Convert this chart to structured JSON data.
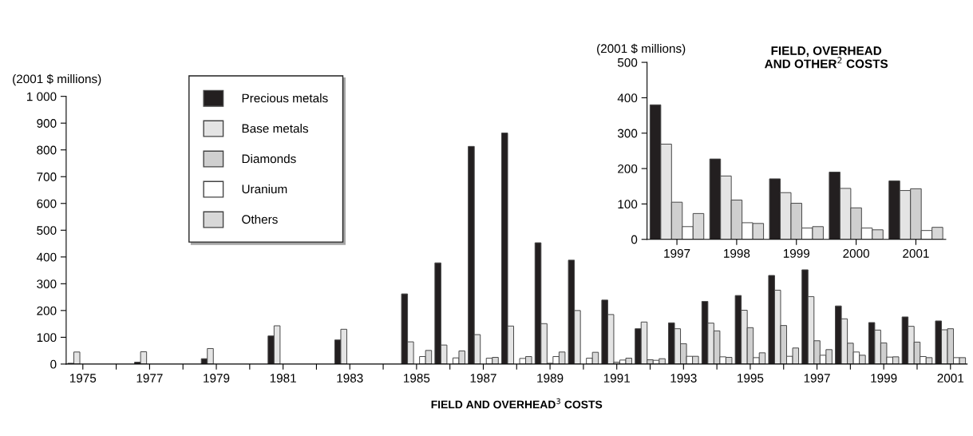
{
  "chart_data": [
    {
      "type": "bar",
      "xlabel": "FIELD AND OVERHEAD$^{3}$ COSTS",
      "ylabel": "(2001 $ millions)",
      "categories": [
        "1975",
        null,
        "1977",
        null,
        "1979",
        null,
        "1981",
        null,
        "1983",
        null,
        "1985",
        null,
        "1987",
        null,
        "1989",
        null,
        "1991",
        null,
        "1993",
        null,
        "1995",
        null,
        "1997",
        null,
        "1999",
        null,
        "2001"
      ],
      "series": [
        {
          "name": "Precious metals",
          "color": "#231f20",
          "values": [
            3,
            0,
            7,
            0,
            20,
            0,
            105,
            0,
            90,
            0,
            262,
            378,
            813,
            863,
            453,
            388,
            239,
            132,
            154,
            234,
            256,
            331,
            352,
            217,
            155,
            176,
            161
          ]
        },
        {
          "name": "Base metals",
          "color": "#e4e4e4",
          "values": [
            45,
            0,
            46,
            0,
            58,
            0,
            143,
            0,
            130,
            0,
            83,
            71,
            110,
            142,
            151,
            200,
            185,
            157,
            132,
            153,
            201,
            276,
            252,
            169,
            127,
            141,
            128
          ]
        },
        {
          "name": "Diamonds",
          "color": "#cfcfcf",
          "values": [
            0,
            0,
            0,
            0,
            0,
            0,
            0,
            0,
            0,
            0,
            0,
            0,
            0,
            null,
            3,
            null,
            7,
            16,
            76,
            124,
            136,
            144,
            87,
            78,
            79,
            82,
            132
          ]
        },
        {
          "name": "Uranium",
          "color": "#ffffff",
          "values": [
            0,
            0,
            0,
            0,
            0,
            0,
            0,
            0,
            0,
            0,
            28,
            23,
            22,
            21,
            28,
            22,
            15,
            14,
            29,
            27,
            24,
            29,
            33,
            45,
            26,
            28,
            24
          ]
        },
        {
          "name": "Others",
          "color": "#d8d8d8",
          "values": [
            0,
            0,
            0,
            0,
            0,
            0,
            0,
            0,
            0,
            0,
            51,
            49,
            25,
            28,
            45,
            44,
            22,
            20,
            29,
            25,
            42,
            60,
            54,
            33,
            27,
            24,
            24
          ]
        }
      ],
      "ylim": [
        0,
        1000
      ],
      "yticks": [
        0,
        100,
        200,
        300,
        400,
        500,
        600,
        700,
        800,
        900,
        {
          "value": 1000,
          "label": "1 000"
        }
      ],
      "grid": false,
      "legend": "top left"
    },
    {
      "type": "bar",
      "title": "FIELD, OVERHEAD\nAND OTHER$^{2}$ COSTS",
      "ylabel": "(2001 $ millions)",
      "categories": [
        "1997",
        "1998",
        "1999",
        "2000",
        "2001"
      ],
      "series": [
        {
          "color": "#231f20",
          "values": [
            380,
            227,
            171,
            190,
            165
          ]
        },
        {
          "color": "#e4e4e4",
          "values": [
            269,
            179,
            132,
            144,
            138
          ]
        },
        {
          "color": "#cfcfcf",
          "values": [
            105,
            111,
            102,
            89,
            143
          ]
        },
        {
          "color": "#ffffff",
          "values": [
            36,
            47,
            32,
            32,
            25
          ]
        },
        {
          "color": "#d8d8d8",
          "values": [
            73,
            45,
            36,
            27,
            34
          ]
        }
      ],
      "ylim": [
        0,
        500
      ],
      "yticks": [
        0,
        100,
        200,
        300,
        400,
        500
      ],
      "grid": false,
      "legend": false
    }
  ]
}
